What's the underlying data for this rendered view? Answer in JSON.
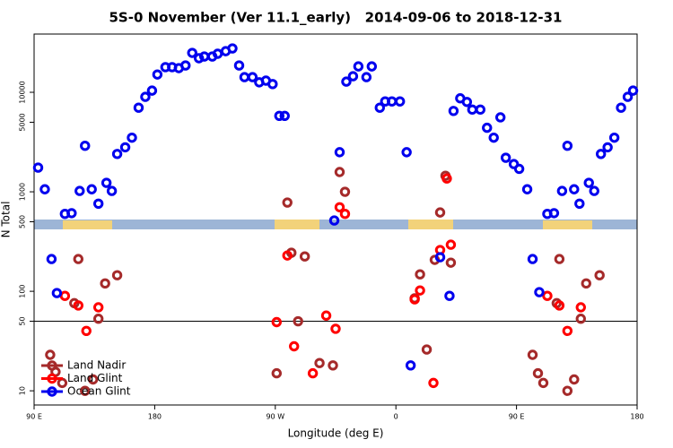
{
  "chart_data": {
    "type": "scatter",
    "title": "5S-0 November (Ver 11.1_early)   2014-09-06 to 2018-12-31",
    "xlabel": "Longitude (deg E)",
    "ylabel": "N Total",
    "xlim": [
      90,
      540
    ],
    "xticks": [
      {
        "value": 90,
        "label": "90 E"
      },
      {
        "value": 180,
        "label": "180"
      },
      {
        "value": 270,
        "label": "90 W"
      },
      {
        "value": 360,
        "label": "0"
      },
      {
        "value": 450,
        "label": "90 E"
      },
      {
        "value": 540,
        "label": "180"
      }
    ],
    "ylim": [
      7.2,
      38500
    ],
    "ylog": true,
    "yticks": [
      10,
      50,
      100,
      500,
      1000,
      5000,
      10000
    ],
    "hline": 50,
    "legend": "lower left",
    "series": [
      {
        "name": "Land Nadir",
        "color": "#a52a2a",
        "x": [
          102,
          106,
          111,
          120,
          123,
          128,
          134,
          138,
          143,
          152,
          271,
          279,
          282,
          287,
          292,
          303,
          313,
          318,
          322,
          374,
          378,
          383,
          389,
          393,
          397,
          401,
          462,
          466,
          470,
          480,
          482,
          488,
          493,
          498,
          502,
          512
        ],
        "values": [
          23,
          15.5,
          12,
          76,
          211,
          10,
          13,
          53,
          120,
          145,
          15,
          780,
          244,
          50,
          224,
          19,
          18,
          1580,
          1000,
          85,
          148,
          26,
          207,
          620,
          1450,
          194,
          23,
          15,
          12,
          76,
          211,
          10,
          13,
          53,
          120,
          145
        ]
      },
      {
        "name": "Land Glint",
        "color": "#ff0000",
        "x": [
          113,
          123,
          129,
          138,
          271,
          279,
          284,
          298,
          308,
          315,
          318,
          322,
          374,
          378,
          388,
          393,
          398,
          401,
          473,
          482,
          488,
          498
        ],
        "values": [
          90,
          72,
          40,
          69,
          49,
          229,
          28,
          15,
          57,
          42,
          700,
          600,
          83,
          102,
          12,
          260,
          1360,
          294,
          90,
          72,
          40,
          69
        ]
      },
      {
        "name": "Ocean Glint",
        "color": "#0000ee",
        "x": [
          93,
          98,
          103,
          107,
          113,
          118,
          124,
          128,
          133,
          138,
          144,
          148,
          152,
          158,
          163,
          168,
          173,
          178,
          182,
          188,
          193,
          198,
          203,
          208,
          213,
          217,
          223,
          227,
          233,
          238,
          243,
          247,
          253,
          258,
          263,
          268,
          273,
          277,
          314,
          318,
          323,
          328,
          332,
          338,
          342,
          348,
          352,
          357,
          363,
          368,
          371,
          393,
          400,
          403,
          408,
          413,
          417,
          423,
          428,
          433,
          438,
          442,
          448,
          452,
          458,
          462,
          467,
          473,
          478,
          484,
          488,
          493,
          497,
          504,
          508,
          513,
          518,
          523,
          528,
          533,
          537
        ],
        "values": [
          1750,
          1060,
          211,
          96,
          600,
          610,
          1020,
          2900,
          1060,
          760,
          1230,
          1020,
          2400,
          2800,
          3500,
          7000,
          9000,
          10400,
          15100,
          17900,
          17900,
          17500,
          18600,
          24900,
          22000,
          22900,
          22900,
          24400,
          25900,
          27600,
          18600,
          14200,
          14200,
          12600,
          13100,
          12100,
          5800,
          5800,
          515,
          2500,
          12800,
          14500,
          18200,
          14200,
          18200,
          7000,
          8100,
          8100,
          8100,
          2500,
          18,
          220,
          90,
          6500,
          8700,
          8000,
          6700,
          6700,
          4400,
          3500,
          5600,
          2200,
          1900,
          1700,
          1060,
          211,
          98,
          600,
          610,
          1020,
          2900,
          1060,
          760,
          1230,
          1020,
          2400,
          2800,
          3500,
          7000,
          9000,
          10400
        ]
      }
    ]
  }
}
